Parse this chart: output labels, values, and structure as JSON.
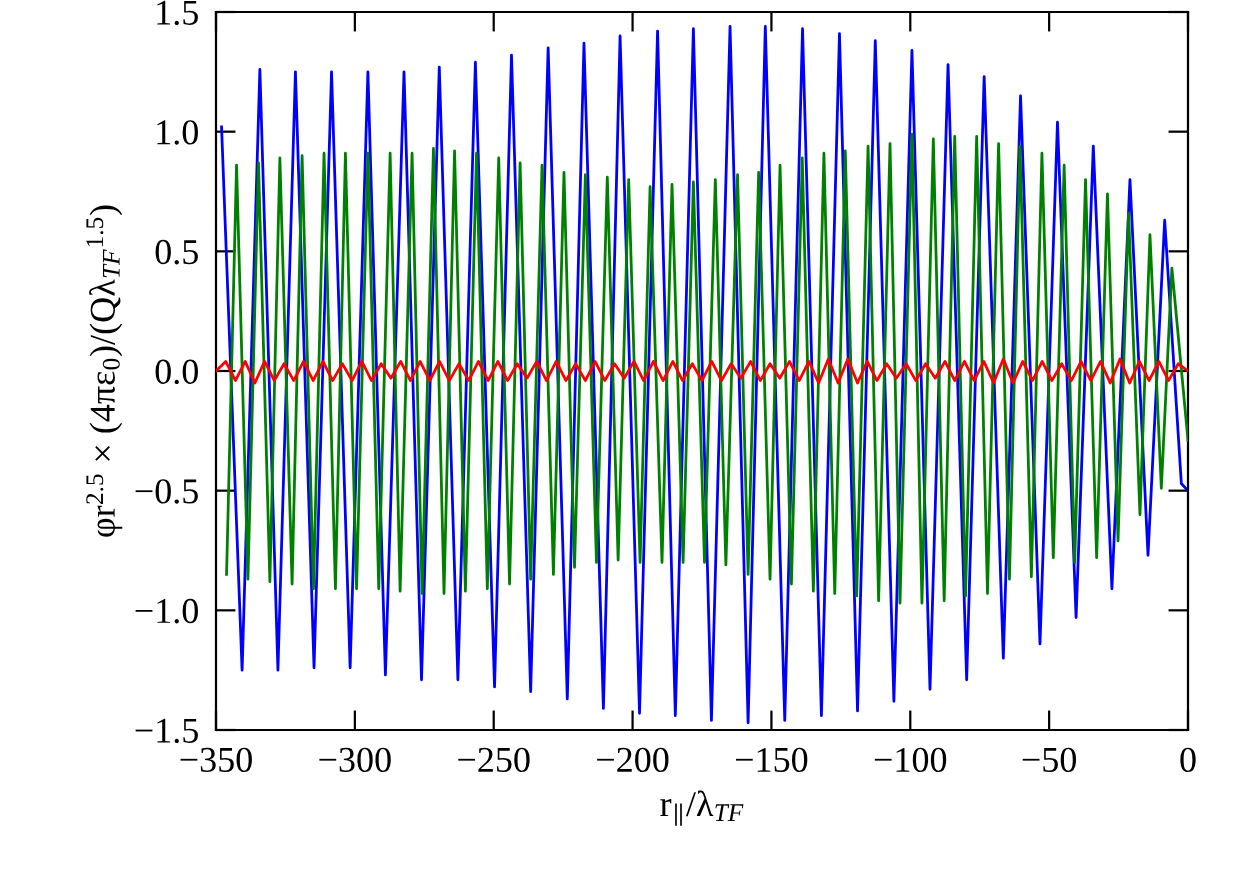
{
  "chart_data": {
    "type": "line",
    "xlabel": "r$_{∥}$/λ$_{TF}$",
    "ylabel": "φr$^{2.5}$ × (4πε$_{0}$)/(Qλ$_{TF}$$^{1.5}$)",
    "xlim": [
      -350,
      0
    ],
    "ylim": [
      -1.5,
      1.5
    ],
    "xticks": [
      {
        "value": -350,
        "label": "−350"
      },
      {
        "value": -300,
        "label": "−300"
      },
      {
        "value": -250,
        "label": "−250"
      },
      {
        "value": -200,
        "label": "−200"
      },
      {
        "value": -150,
        "label": "−150"
      },
      {
        "value": -100,
        "label": "−100"
      },
      {
        "value": -50,
        "label": "−50"
      },
      0
    ],
    "yticks": [
      {
        "value": -1.5,
        "label": "−1.5"
      },
      {
        "value": -1.0,
        "label": "−1.0"
      },
      {
        "value": -0.5,
        "label": "−0.5"
      },
      {
        "value": 0,
        "label": "0.0"
      },
      {
        "value": 0.5,
        "label": "0.5"
      },
      {
        "value": 1.0,
        "label": "1.0"
      },
      {
        "value": 1.5,
        "label": "1.5"
      }
    ],
    "grid": false,
    "legend": false,
    "marker": "none",
    "line_style": "solid",
    "series": [
      {
        "color": "#0000ff",
        "x": [
          -348,
          -340.6,
          -334.2,
          -327.7,
          -321.4,
          -314.7,
          -308.4,
          -301.7,
          -295.3,
          -289.0,
          -282.3,
          -276.0,
          -269.6,
          -262.9,
          -256.6,
          -249.7,
          -243.6,
          -236.7,
          -230.4,
          -223.5,
          -217.5,
          -210.5,
          -204.5,
          -197.5,
          -191.0,
          -184.6,
          -178.1,
          -171.6,
          -164.9,
          -158.4,
          -152.2,
          -145.2,
          -138.8,
          -132.0,
          -125.5,
          -119.0,
          -112.6,
          -105.9,
          -99.4,
          -92.9,
          -86.4,
          -79.7,
          -73.4,
          -66.5,
          -60.3,
          -53.3,
          -47.0,
          -40.3,
          -34.1,
          -27.4,
          -20.9,
          -14.4,
          -8.4,
          -2.4,
          0
        ],
        "values": [
          1.02,
          -1.25,
          1.26,
          -1.25,
          1.25,
          -1.24,
          1.25,
          -1.24,
          1.25,
          -1.27,
          1.25,
          -1.29,
          1.27,
          -1.29,
          1.29,
          -1.32,
          1.32,
          -1.34,
          1.35,
          -1.37,
          1.37,
          -1.41,
          1.4,
          -1.43,
          1.42,
          -1.44,
          1.43,
          -1.46,
          1.44,
          -1.47,
          1.44,
          -1.46,
          1.43,
          -1.44,
          1.41,
          -1.42,
          1.38,
          -1.38,
          1.34,
          -1.33,
          1.28,
          -1.29,
          1.23,
          -1.2,
          1.15,
          -1.14,
          1.04,
          -1.03,
          0.94,
          -0.91,
          0.8,
          -0.77,
          0.63,
          -0.47,
          -0.5
        ]
      },
      {
        "color": "#008000",
        "x": [
          -346.2,
          -342.6,
          -338.5,
          -334.7,
          -330.6,
          -327.0,
          -322.6,
          -319.0,
          -314.9,
          -311.1,
          -307.0,
          -303.4,
          -299.4,
          -295.3,
          -291.4,
          -287.3,
          -283.7,
          -279.4,
          -275.8,
          -271.7,
          -267.9,
          -264.1,
          -260.2,
          -256.2,
          -252.3,
          -248.2,
          -244.3,
          -240.5,
          -236.7,
          -232.6,
          -228.5,
          -224.7,
          -220.9,
          -217.0,
          -213.0,
          -209.1,
          -205.2,
          -201.4,
          -197.3,
          -193.7,
          -189.4,
          -185.8,
          -181.8,
          -178.1,
          -174.1,
          -170.2,
          -166.4,
          -162.2,
          -158.4,
          -154.6,
          -150.5,
          -146.9,
          -142.8,
          -138.9,
          -134.9,
          -131.1,
          -127.2,
          -123.4,
          -119.3,
          -115.2,
          -111.4,
          -107.3,
          -103.7,
          -99.4,
          -95.8,
          -91.7,
          -87.8,
          -84.0,
          -80.1,
          -76.1,
          -72.2,
          -68.2,
          -64.3,
          -60.5,
          -56.4,
          -52.6,
          -48.5,
          -44.6,
          -40.8,
          -36.9,
          -32.9,
          -29.0,
          -25.2,
          -21.4,
          -17.3,
          -13.7,
          -9.6,
          -5.8,
          0
        ],
        "values": [
          -0.85,
          0.86,
          -0.87,
          0.87,
          -0.88,
          0.89,
          -0.89,
          0.9,
          -0.91,
          0.91,
          -0.91,
          0.91,
          -0.91,
          0.91,
          -0.91,
          0.91,
          -0.92,
          0.91,
          -0.93,
          0.93,
          -0.93,
          0.92,
          -0.92,
          0.91,
          -0.91,
          0.89,
          -0.89,
          0.87,
          -0.87,
          0.86,
          -0.85,
          0.83,
          -0.82,
          0.82,
          -0.8,
          0.81,
          -0.79,
          0.8,
          -0.8,
          0.77,
          -0.8,
          0.78,
          -0.8,
          0.79,
          -0.8,
          0.8,
          -0.81,
          0.82,
          -0.85,
          0.83,
          -0.87,
          0.86,
          -0.89,
          0.89,
          -0.92,
          0.91,
          -0.93,
          0.92,
          -0.94,
          0.94,
          -0.96,
          0.95,
          -0.97,
          0.99,
          -0.97,
          0.97,
          -0.96,
          0.98,
          -0.94,
          0.98,
          -0.93,
          0.95,
          -0.87,
          0.94,
          -0.86,
          0.91,
          -0.78,
          0.86,
          -0.8,
          0.8,
          -0.78,
          0.74,
          -0.71,
          0.66,
          -0.6,
          0.57,
          -0.49,
          0.43,
          -0.29
        ]
      },
      {
        "color": "#ff0000",
        "x": [
          -350,
          -346.5,
          -343,
          -339.5,
          -336,
          -332.5,
          -329,
          -325.5,
          -322,
          -318.5,
          -315,
          -311.5,
          -308,
          -304.5,
          -301,
          -297.5,
          -294,
          -290.5,
          -287,
          -283.5,
          -280,
          -276.5,
          -273,
          -269.5,
          -266,
          -262.5,
          -259,
          -255.5,
          -252,
          -248.5,
          -245,
          -241.5,
          -238,
          -234.5,
          -231,
          -227.5,
          -224,
          -220.5,
          -217,
          -213.5,
          -210,
          -206.5,
          -203,
          -199.5,
          -196,
          -192.5,
          -189,
          -185.5,
          -182,
          -178.5,
          -175,
          -171.5,
          -168,
          -164.5,
          -161,
          -157.5,
          -154,
          -150.5,
          -147,
          -143.5,
          -140,
          -136.5,
          -133,
          -129.5,
          -126,
          -122.5,
          -119,
          -115.5,
          -112,
          -108.5,
          -105,
          -101.5,
          -98,
          -94.5,
          -91,
          -87.5,
          -84,
          -80.5,
          -77,
          -73.5,
          -70,
          -66.5,
          -63,
          -59.5,
          -56,
          -52.5,
          -49,
          -45.5,
          -42,
          -38.5,
          -35,
          -31.5,
          -28,
          -24.5,
          -21,
          -17.5,
          -14,
          -10.5,
          -7,
          -3.5,
          0
        ],
        "values": [
          0.0,
          0.04,
          -0.04,
          0.04,
          -0.05,
          0.04,
          -0.04,
          0.03,
          -0.04,
          0.04,
          -0.04,
          0.04,
          -0.04,
          0.03,
          -0.04,
          0.04,
          -0.04,
          0.03,
          -0.03,
          0.04,
          -0.04,
          0.04,
          -0.04,
          0.04,
          -0.04,
          0.03,
          -0.04,
          0.04,
          -0.04,
          0.04,
          -0.04,
          0.03,
          -0.03,
          0.04,
          -0.04,
          0.04,
          -0.04,
          0.03,
          -0.04,
          0.04,
          -0.04,
          0.03,
          -0.03,
          0.04,
          -0.04,
          0.04,
          -0.04,
          0.04,
          -0.04,
          0.03,
          -0.04,
          0.04,
          -0.04,
          0.03,
          -0.03,
          0.04,
          -0.04,
          0.03,
          -0.03,
          0.04,
          -0.04,
          0.04,
          -0.05,
          0.05,
          -0.05,
          0.05,
          -0.05,
          0.04,
          -0.04,
          0.03,
          -0.03,
          0.03,
          -0.04,
          0.03,
          -0.03,
          0.04,
          -0.04,
          0.04,
          -0.04,
          0.04,
          -0.05,
          0.05,
          -0.05,
          0.04,
          -0.04,
          0.04,
          -0.04,
          0.03,
          -0.04,
          0.04,
          -0.04,
          0.04,
          -0.05,
          0.05,
          -0.05,
          0.04,
          -0.04,
          0.04,
          -0.04,
          0.03,
          0.0
        ]
      }
    ]
  }
}
